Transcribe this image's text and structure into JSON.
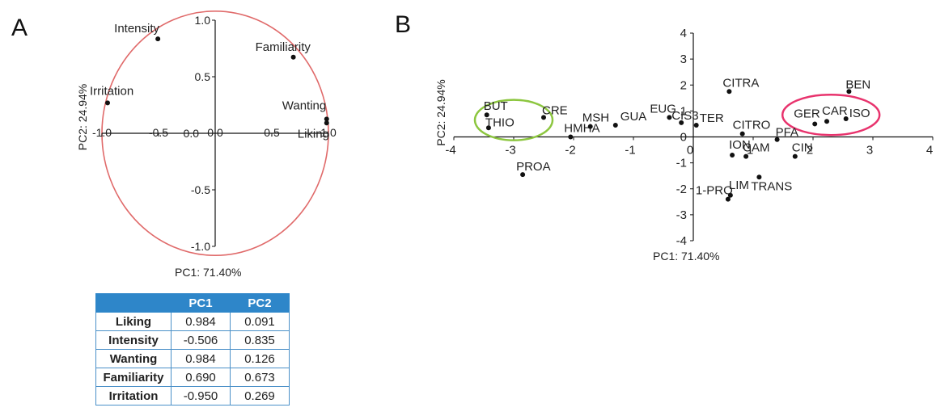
{
  "panels": {
    "a": "A",
    "b": "B"
  },
  "chart_data": [
    {
      "type": "scatter",
      "panel": "A",
      "xlabel": "PC1: 71.40%",
      "ylabel": "PC2: 24.94%",
      "xlim": [
        -1.0,
        1.0
      ],
      "ylim": [
        -1.0,
        1.0
      ],
      "xticks": [
        "-1.0",
        "-0.5",
        "0.0",
        "0.5",
        "1.0"
      ],
      "yticks": [
        "-1.0",
        "-0.5",
        "0.0",
        "0.5",
        "1.0"
      ],
      "unit_circle": true,
      "grid": false,
      "circle_color": "#e06a6a",
      "points": [
        {
          "label": "Liking",
          "x": 0.984,
          "y": 0.091
        },
        {
          "label": "Intensity",
          "x": -0.506,
          "y": 0.835
        },
        {
          "label": "Wanting",
          "x": 0.984,
          "y": 0.126
        },
        {
          "label": "Familiarity",
          "x": 0.69,
          "y": 0.673
        },
        {
          "label": "Irritation",
          "x": -0.95,
          "y": 0.269
        }
      ]
    },
    {
      "type": "scatter",
      "panel": "B",
      "xlabel": "PC1: 71.40%",
      "ylabel": "PC2: 24.94%",
      "xlim": [
        -4,
        4
      ],
      "ylim": [
        -4,
        4
      ],
      "xticks": [
        "-4",
        "-3",
        "-2",
        "-1",
        "0",
        "1",
        "2",
        "3",
        "4"
      ],
      "yticks": [
        "-4",
        "-3",
        "-2",
        "-1",
        "0",
        "1",
        "2",
        "3",
        "4"
      ],
      "grid": false,
      "cluster_colors": {
        "left": "#8cc63f",
        "right": "#e8336d"
      },
      "points": [
        {
          "label": "BUT",
          "x": -3.45,
          "y": 0.85
        },
        {
          "label": "THIO",
          "x": -3.42,
          "y": 0.35
        },
        {
          "label": "CRE",
          "x": -2.5,
          "y": 0.75
        },
        {
          "label": "PROA",
          "x": -2.85,
          "y": -1.45
        },
        {
          "label": "HMHA",
          "x": -2.05,
          "y": 0.0
        },
        {
          "label": "MSH",
          "x": -1.72,
          "y": 0.4
        },
        {
          "label": "GUA",
          "x": -1.3,
          "y": 0.45
        },
        {
          "label": "EUG",
          "x": -0.4,
          "y": 0.75
        },
        {
          "label": "CIS3",
          "x": -0.2,
          "y": 0.55
        },
        {
          "label": "TER",
          "x": 0.05,
          "y": 0.45
        },
        {
          "label": "CITRA",
          "x": 0.6,
          "y": 1.75
        },
        {
          "label": "CITRO",
          "x": 0.82,
          "y": 0.12
        },
        {
          "label": "PFA",
          "x": 1.4,
          "y": -0.1
        },
        {
          "label": "ION",
          "x": 0.65,
          "y": -0.7
        },
        {
          "label": "CAM",
          "x": 0.88,
          "y": -0.75
        },
        {
          "label": "CIN",
          "x": 1.7,
          "y": -0.75
        },
        {
          "label": "TRANS",
          "x": 1.1,
          "y": -1.55
        },
        {
          "label": "LIM",
          "x": 0.62,
          "y": -2.25
        },
        {
          "label": "1-PRO",
          "x": 0.58,
          "y": -2.4
        },
        {
          "label": "GER",
          "x": 2.03,
          "y": 0.5
        },
        {
          "label": "CAR",
          "x": 2.23,
          "y": 0.6
        },
        {
          "label": "ISO",
          "x": 2.55,
          "y": 0.7
        },
        {
          "label": "BEN",
          "x": 2.6,
          "y": 1.75
        }
      ]
    }
  ],
  "table": {
    "headers": [
      "",
      "PC1",
      "PC2"
    ],
    "rows": [
      {
        "label": "Liking",
        "pc1": "0.984",
        "pc2": "0.091"
      },
      {
        "label": "Intensity",
        "pc1": "-0.506",
        "pc2": "0.835"
      },
      {
        "label": "Wanting",
        "pc1": "0.984",
        "pc2": "0.126"
      },
      {
        "label": "Familiarity",
        "pc1": "0.690",
        "pc2": "0.673"
      },
      {
        "label": "Irritation",
        "pc1": "-0.950",
        "pc2": "0.269"
      }
    ]
  }
}
